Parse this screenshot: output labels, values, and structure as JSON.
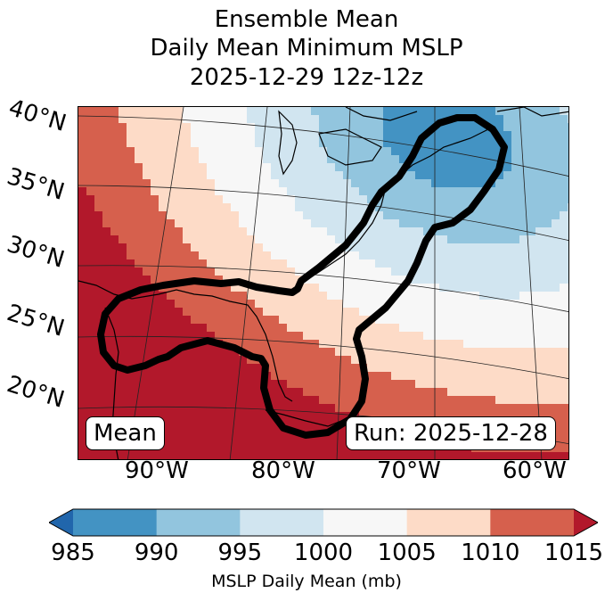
{
  "title": {
    "line1": "Ensemble Mean",
    "line2": "Daily Mean Minimum MSLP",
    "line3": "2025-12-29 12z-12z"
  },
  "map": {
    "lat_labels": [
      "40°N",
      "35°N",
      "30°N",
      "25°N",
      "20°N"
    ],
    "lon_labels": [
      "90°W",
      "80°W",
      "70°W",
      "60°W"
    ],
    "mean_box": "Mean",
    "run_box": "Run: 2025-12-28",
    "contour_description": "Black outline enclosing Gulf of Mexico and US East Coast to Maritimes",
    "low_center": "Northeast US / Maritime Canada (985-990 mb)"
  },
  "chart_data": {
    "type": "heatmap",
    "title": "Ensemble Mean Daily Mean Minimum MSLP 2025-12-29 12z-12z",
    "projection": "Lambert Conformal",
    "extent": {
      "lon": [
        -96,
        -58
      ],
      "lat": [
        17,
        41
      ]
    },
    "colorbar": {
      "label": "MSLP Daily Mean (mb)",
      "ticks": [
        985,
        990,
        995,
        1000,
        1005,
        1010,
        1015
      ],
      "tick_labels": [
        "985",
        "990",
        "995",
        "1000",
        "1005",
        "1010",
        "1015"
      ],
      "levels": [
        {
          "range": "<985",
          "color": "#2166ac"
        },
        {
          "range": "985-990",
          "color": "#4393c3"
        },
        {
          "range": "990-995",
          "color": "#92c5de"
        },
        {
          "range": "995-1000",
          "color": "#d1e5f0"
        },
        {
          "range": "1000-1005",
          "color": "#f7f7f7"
        },
        {
          "range": "1005-1010",
          "color": "#fddbc7"
        },
        {
          "range": "1010-1015",
          "color": "#d6604d"
        },
        {
          "range": ">1015",
          "color": "#b2182b"
        }
      ],
      "extend": "both"
    },
    "annotations": [
      "Mean",
      "Run: 2025-12-28"
    ]
  }
}
